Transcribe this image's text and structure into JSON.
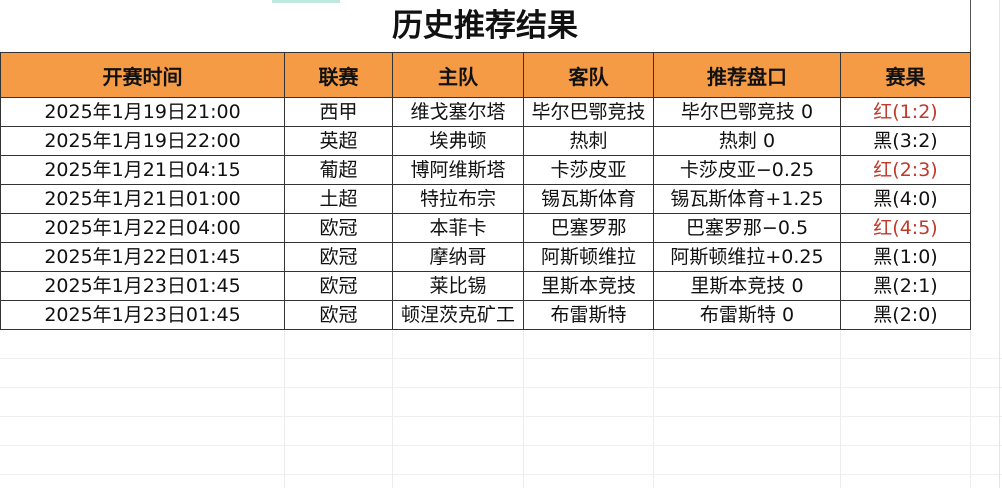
{
  "title": "历史推荐结果",
  "headers": [
    "开赛时间",
    "联赛",
    "主队",
    "客队",
    "推荐盘口",
    "赛果"
  ],
  "colors": {
    "header_bg": "#f59a45",
    "red_result": "#c0392b",
    "black_result": "#111111"
  },
  "rows": [
    {
      "time": "2025年1月19日21:00",
      "league": "西甲",
      "home": "维戈塞尔塔",
      "away": "毕尔巴鄂竞技",
      "pick": "毕尔巴鄂竞技 0",
      "result": "红(1:2)",
      "result_color": "red"
    },
    {
      "time": "2025年1月19日22:00",
      "league": "英超",
      "home": "埃弗顿",
      "away": "热刺",
      "pick": "热刺 0",
      "result": "黑(3:2)",
      "result_color": "black"
    },
    {
      "time": "2025年1月21日04:15",
      "league": "葡超",
      "home": "博阿维斯塔",
      "away": "卡莎皮亚",
      "pick": "卡莎皮亚−0.25",
      "result": "红(2:3)",
      "result_color": "red"
    },
    {
      "time": "2025年1月21日01:00",
      "league": "土超",
      "home": "特拉布宗",
      "away": "锡瓦斯体育",
      "pick": "锡瓦斯体育+1.25",
      "result": "黑(4:0)",
      "result_color": "black"
    },
    {
      "time": "2025年1月22日04:00",
      "league": "欧冠",
      "home": "本菲卡",
      "away": "巴塞罗那",
      "pick": "巴塞罗那−0.5",
      "result": "红(4:5)",
      "result_color": "red"
    },
    {
      "time": "2025年1月22日01:45",
      "league": "欧冠",
      "home": "摩纳哥",
      "away": "阿斯顿维拉",
      "pick": "阿斯顿维拉+0.25",
      "result": "黑(1:0)",
      "result_color": "black"
    },
    {
      "time": "2025年1月23日01:45",
      "league": "欧冠",
      "home": "莱比锡",
      "away": "里斯本竞技",
      "pick": "里斯本竞技 0",
      "result": "黑(2:1)",
      "result_color": "black"
    },
    {
      "time": "2025年1月23日01:45",
      "league": "欧冠",
      "home": "顿涅茨克矿工",
      "away": "布雷斯特",
      "pick": "布雷斯特 0",
      "result": "黑(2:0)",
      "result_color": "black"
    }
  ]
}
